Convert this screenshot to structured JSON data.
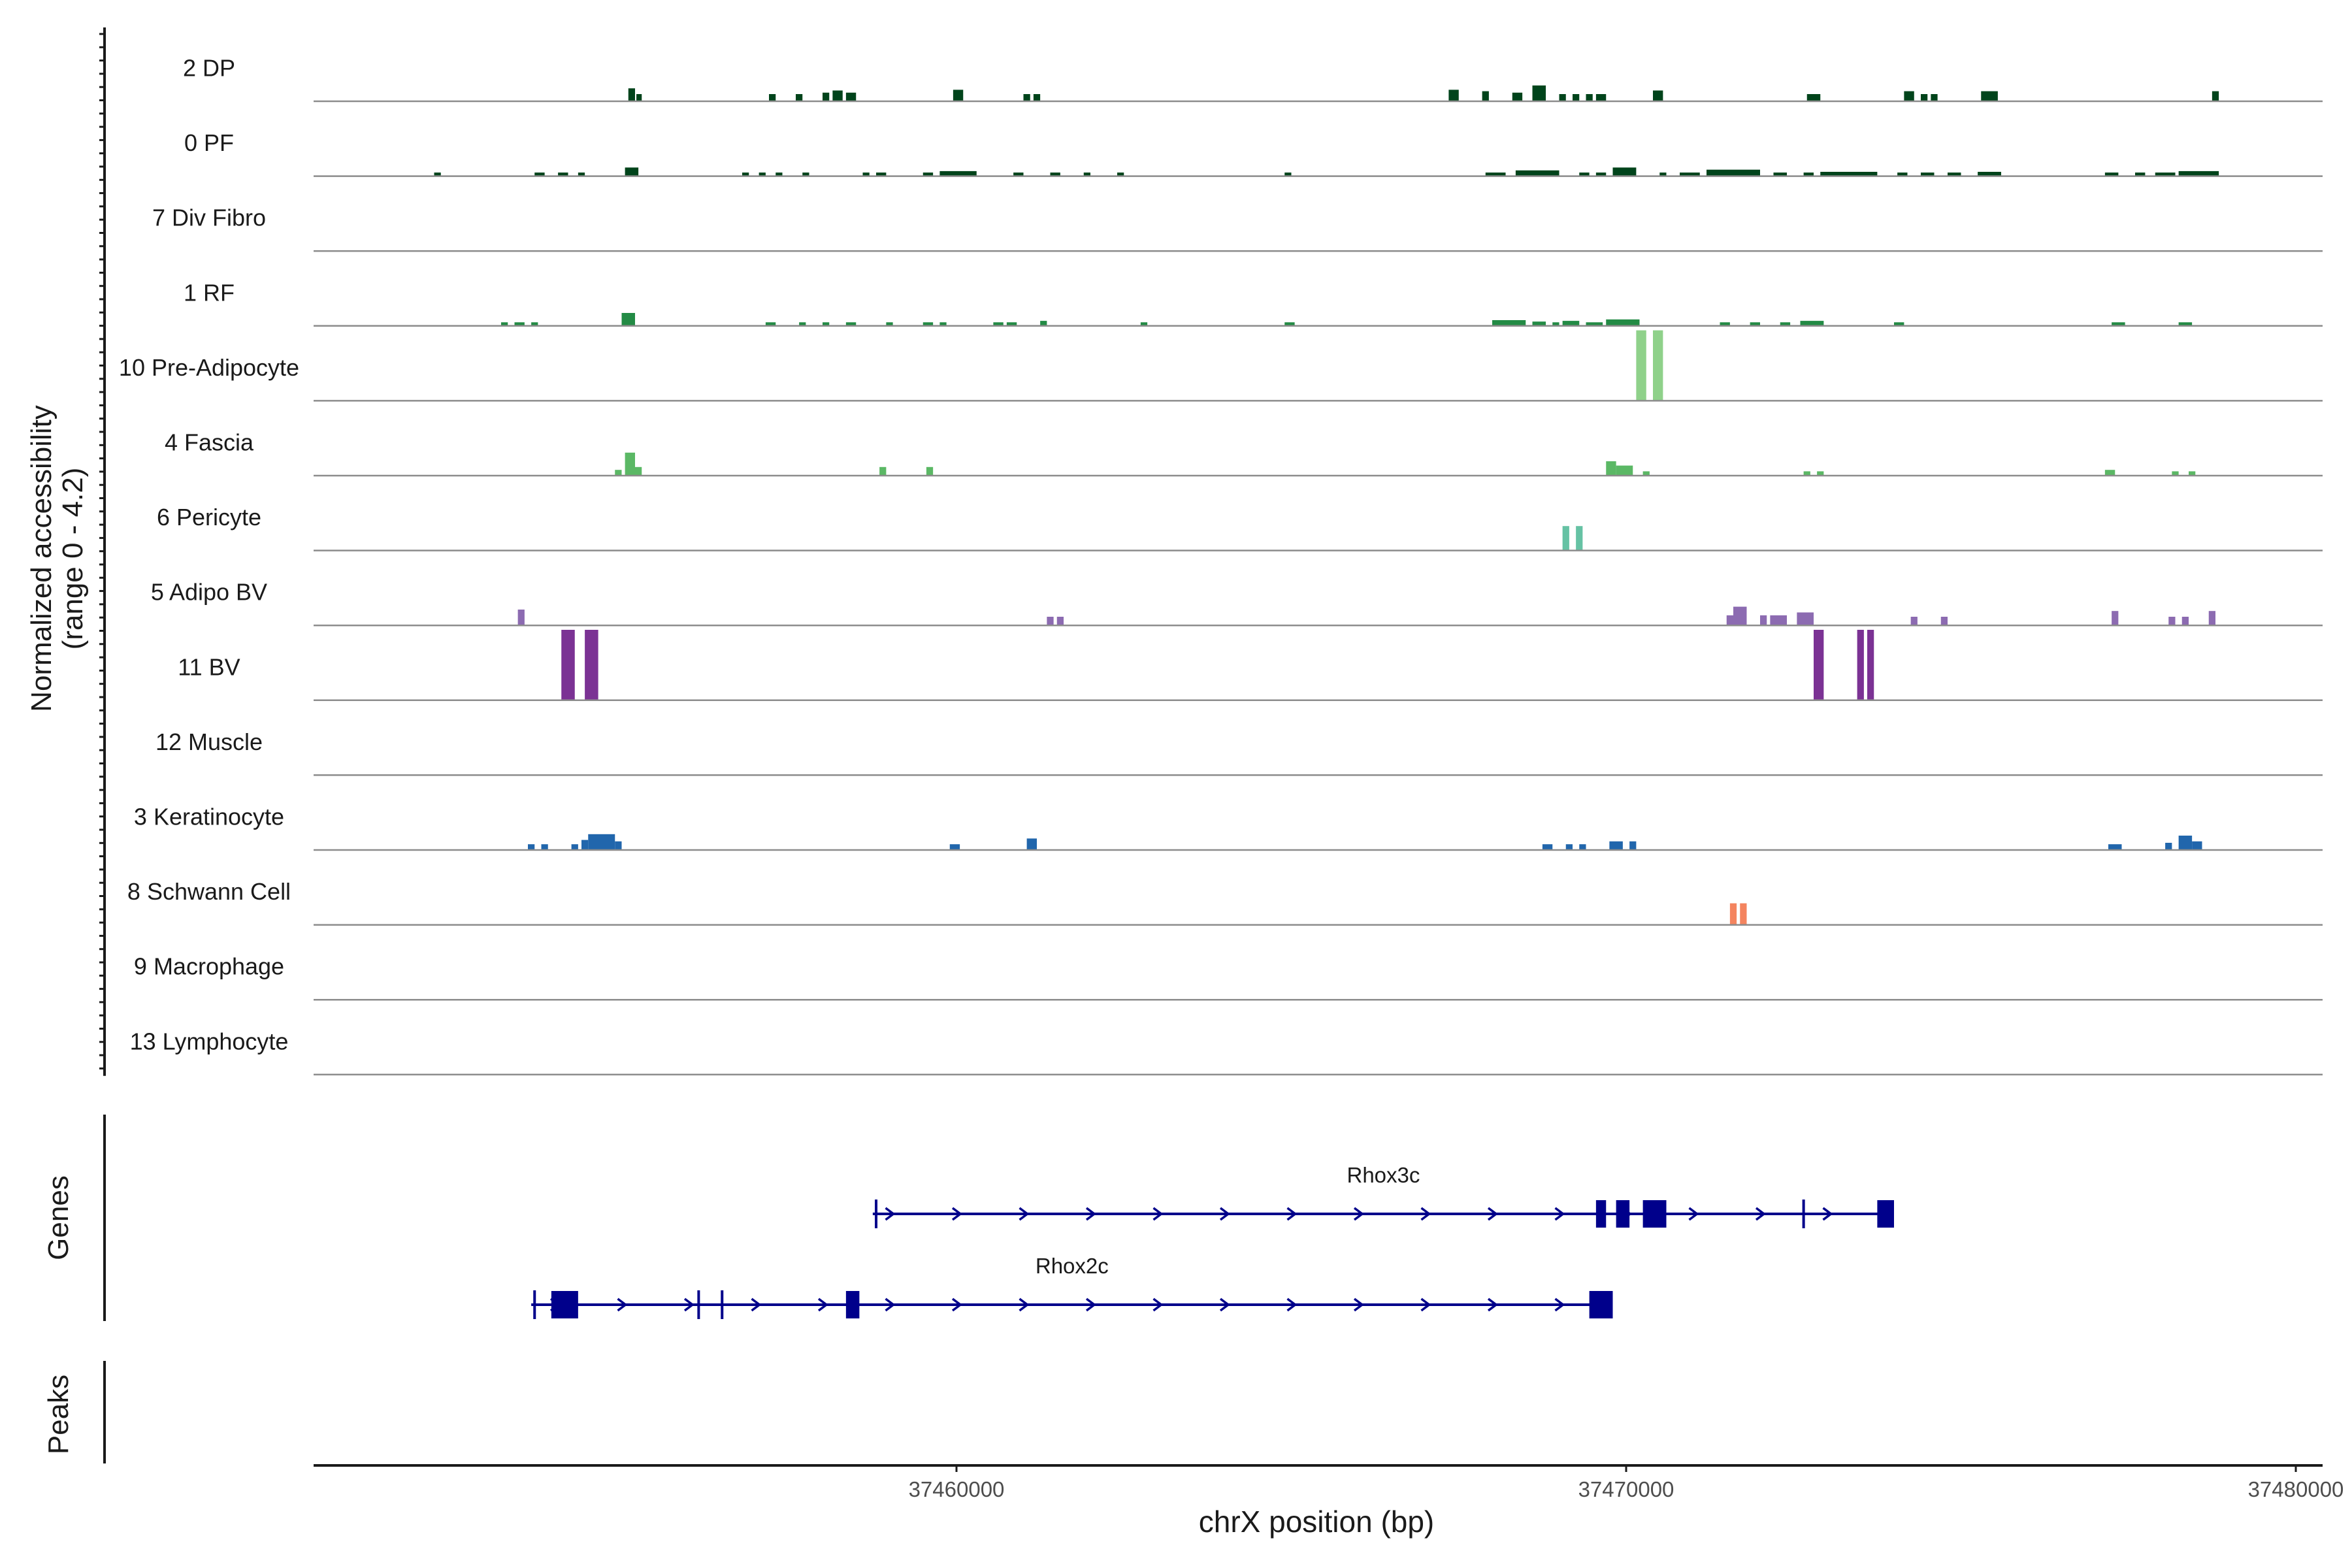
{
  "chart_data": {
    "type": "coverage",
    "title": "",
    "ylabel": "Normalized accessibility",
    "ylabel_range": "(range 0 - 4.2)",
    "y_range": [
      0,
      4.2
    ],
    "xlabel": "chrX position (bp)",
    "xlim": [
      37450400,
      37480400
    ],
    "x_ticks": [
      {
        "value": 37460000,
        "label": "37460000"
      },
      {
        "value": 37470000,
        "label": "37470000"
      },
      {
        "value": 37480000,
        "label": "37480000"
      }
    ],
    "tracks": [
      {
        "name": "2 DP",
        "color": "#00441b",
        "peaks": [
          [
            37455100,
            37455200,
            0.18
          ],
          [
            37455220,
            37455300,
            0.1
          ],
          [
            37457200,
            37457300,
            0.1
          ],
          [
            37457600,
            37457700,
            0.1
          ],
          [
            37458000,
            37458100,
            0.12
          ],
          [
            37458150,
            37458300,
            0.15
          ],
          [
            37458350,
            37458500,
            0.12
          ],
          [
            37459950,
            37460100,
            0.16
          ],
          [
            37461000,
            37461100,
            0.1
          ],
          [
            37461150,
            37461250,
            0.1
          ],
          [
            37467350,
            37467500,
            0.16
          ],
          [
            37467850,
            37467950,
            0.14
          ],
          [
            37468300,
            37468450,
            0.12
          ],
          [
            37468600,
            37468800,
            0.22
          ],
          [
            37469000,
            37469100,
            0.1
          ],
          [
            37469200,
            37469300,
            0.1
          ],
          [
            37469400,
            37469500,
            0.1
          ],
          [
            37469550,
            37469700,
            0.1
          ],
          [
            37470400,
            37470550,
            0.15
          ],
          [
            37472700,
            37472900,
            0.1
          ],
          [
            37474150,
            37474300,
            0.14
          ],
          [
            37474400,
            37474500,
            0.1
          ],
          [
            37474550,
            37474650,
            0.1
          ],
          [
            37475300,
            37475550,
            0.14
          ],
          [
            37478750,
            37478850,
            0.14
          ]
        ]
      },
      {
        "name": "0 PF",
        "color": "#00441b",
        "peaks": [
          [
            37452200,
            37452300,
            0.05
          ],
          [
            37453700,
            37453850,
            0.05
          ],
          [
            37454050,
            37454200,
            0.05
          ],
          [
            37454350,
            37454450,
            0.05
          ],
          [
            37455050,
            37455250,
            0.12
          ],
          [
            37456800,
            37456900,
            0.05
          ],
          [
            37457050,
            37457150,
            0.05
          ],
          [
            37457300,
            37457400,
            0.05
          ],
          [
            37457700,
            37457800,
            0.05
          ],
          [
            37458600,
            37458700,
            0.05
          ],
          [
            37458800,
            37458950,
            0.05
          ],
          [
            37459500,
            37459650,
            0.05
          ],
          [
            37459750,
            37460300,
            0.07
          ],
          [
            37460850,
            37461000,
            0.05
          ],
          [
            37461400,
            37461550,
            0.05
          ],
          [
            37461900,
            37462000,
            0.05
          ],
          [
            37462400,
            37462500,
            0.05
          ],
          [
            37464900,
            37465000,
            0.05
          ],
          [
            37467900,
            37468200,
            0.05
          ],
          [
            37468350,
            37469000,
            0.08
          ],
          [
            37469300,
            37469450,
            0.05
          ],
          [
            37469550,
            37469700,
            0.05
          ],
          [
            37469800,
            37470150,
            0.12
          ],
          [
            37470500,
            37470600,
            0.05
          ],
          [
            37470800,
            37471100,
            0.05
          ],
          [
            37471200,
            37472000,
            0.09
          ],
          [
            37472200,
            37472400,
            0.05
          ],
          [
            37472650,
            37472800,
            0.05
          ],
          [
            37472900,
            37473750,
            0.06
          ],
          [
            37474050,
            37474200,
            0.05
          ],
          [
            37474400,
            37474600,
            0.05
          ],
          [
            37474800,
            37475000,
            0.05
          ],
          [
            37475250,
            37475600,
            0.06
          ],
          [
            37477150,
            37477350,
            0.05
          ],
          [
            37477600,
            37477750,
            0.05
          ],
          [
            37477900,
            37478200,
            0.05
          ],
          [
            37478250,
            37478850,
            0.07
          ]
        ]
      },
      {
        "name": "7 Div Fibro",
        "color": "#006d2c",
        "peaks": []
      },
      {
        "name": "1 RF",
        "color": "#238b45",
        "peaks": [
          [
            37453200,
            37453300,
            0.05
          ],
          [
            37453400,
            37453550,
            0.05
          ],
          [
            37453650,
            37453750,
            0.05
          ],
          [
            37455000,
            37455200,
            0.18
          ],
          [
            37457150,
            37457300,
            0.05
          ],
          [
            37457650,
            37457750,
            0.05
          ],
          [
            37458000,
            37458100,
            0.05
          ],
          [
            37458350,
            37458500,
            0.05
          ],
          [
            37458950,
            37459050,
            0.05
          ],
          [
            37459500,
            37459650,
            0.05
          ],
          [
            37459750,
            37459850,
            0.05
          ],
          [
            37460550,
            37460700,
            0.05
          ],
          [
            37460750,
            37460900,
            0.05
          ],
          [
            37461250,
            37461350,
            0.07
          ],
          [
            37462750,
            37462850,
            0.05
          ],
          [
            37464900,
            37465050,
            0.05
          ],
          [
            37468000,
            37468500,
            0.08
          ],
          [
            37468600,
            37468800,
            0.06
          ],
          [
            37468900,
            37469000,
            0.05
          ],
          [
            37469050,
            37469300,
            0.07
          ],
          [
            37469400,
            37469650,
            0.05
          ],
          [
            37469700,
            37470200,
            0.09
          ],
          [
            37471400,
            37471550,
            0.05
          ],
          [
            37471850,
            37472000,
            0.05
          ],
          [
            37472300,
            37472450,
            0.05
          ],
          [
            37472600,
            37472950,
            0.07
          ],
          [
            37474000,
            37474150,
            0.05
          ],
          [
            37477250,
            37477450,
            0.05
          ],
          [
            37478250,
            37478450,
            0.05
          ]
        ]
      },
      {
        "name": "10 Pre-Adipocyte",
        "color": "#8fd18a",
        "peaks": [
          [
            37470150,
            37470300,
            0.98
          ],
          [
            37470400,
            37470550,
            0.98
          ]
        ]
      },
      {
        "name": "4 Fascia",
        "color": "#5bb865",
        "peaks": [
          [
            37454900,
            37455000,
            0.08
          ],
          [
            37455050,
            37455200,
            0.32
          ],
          [
            37455200,
            37455300,
            0.12
          ],
          [
            37458850,
            37458950,
            0.12
          ],
          [
            37459550,
            37459650,
            0.12
          ],
          [
            37469700,
            37469850,
            0.2
          ],
          [
            37469850,
            37470100,
            0.14
          ],
          [
            37470250,
            37470350,
            0.06
          ],
          [
            37472650,
            37472750,
            0.06
          ],
          [
            37472850,
            37472950,
            0.06
          ],
          [
            37477150,
            37477300,
            0.08
          ],
          [
            37478150,
            37478250,
            0.06
          ],
          [
            37478400,
            37478500,
            0.06
          ]
        ]
      },
      {
        "name": "6 Pericyte",
        "color": "#66c2a4",
        "peaks": [
          [
            37469050,
            37469150,
            0.34
          ],
          [
            37469250,
            37469350,
            0.34
          ]
        ]
      },
      {
        "name": "5 Adipo BV",
        "color": "#8c6bb1",
        "peaks": [
          [
            37453450,
            37453550,
            0.22
          ],
          [
            37461350,
            37461450,
            0.12
          ],
          [
            37461500,
            37461600,
            0.12
          ],
          [
            37471500,
            37471600,
            0.14
          ],
          [
            37471600,
            37471800,
            0.26
          ],
          [
            37472000,
            37472100,
            0.14
          ],
          [
            37472150,
            37472400,
            0.14
          ],
          [
            37472550,
            37472800,
            0.18
          ],
          [
            37474250,
            37474350,
            0.12
          ],
          [
            37474700,
            37474800,
            0.12
          ],
          [
            37477250,
            37477350,
            0.2
          ],
          [
            37478100,
            37478200,
            0.12
          ],
          [
            37478300,
            37478400,
            0.12
          ],
          [
            37478700,
            37478800,
            0.2
          ]
        ]
      },
      {
        "name": "11 BV",
        "color": "#7b3294",
        "peaks": [
          [
            37454100,
            37454300,
            0.98
          ],
          [
            37454450,
            37454650,
            0.98
          ],
          [
            37472800,
            37472950,
            0.98
          ],
          [
            37473450,
            37473550,
            0.98
          ],
          [
            37473600,
            37473700,
            0.98
          ]
        ]
      },
      {
        "name": "12 Muscle",
        "color": "#41b6c4",
        "peaks": []
      },
      {
        "name": "3 Keratinocyte",
        "color": "#2166ac",
        "peaks": [
          [
            37453600,
            37453700,
            0.08
          ],
          [
            37453800,
            37453900,
            0.08
          ],
          [
            37454250,
            37454350,
            0.08
          ],
          [
            37454400,
            37454500,
            0.14
          ],
          [
            37454500,
            37454900,
            0.22
          ],
          [
            37454900,
            37455000,
            0.12
          ],
          [
            37459900,
            37460050,
            0.08
          ],
          [
            37461050,
            37461200,
            0.16
          ],
          [
            37468750,
            37468900,
            0.08
          ],
          [
            37469100,
            37469200,
            0.08
          ],
          [
            37469300,
            37469400,
            0.08
          ],
          [
            37469750,
            37469950,
            0.12
          ],
          [
            37470050,
            37470150,
            0.12
          ],
          [
            37477200,
            37477400,
            0.08
          ],
          [
            37478050,
            37478150,
            0.1
          ],
          [
            37478250,
            37478450,
            0.2
          ],
          [
            37478450,
            37478600,
            0.12
          ]
        ]
      },
      {
        "name": "8 Schwann Cell",
        "color": "#f4845f",
        "peaks": [
          [
            37471550,
            37471650,
            0.3
          ],
          [
            37471700,
            37471800,
            0.3
          ]
        ]
      },
      {
        "name": "9 Macrophage",
        "color": "#e34a33",
        "peaks": []
      },
      {
        "name": "13 Lymphocyte",
        "color": "#b30000",
        "peaks": []
      }
    ],
    "genes_label": "Genes",
    "peaks_label": "Peaks",
    "genes": [
      {
        "name": "Rhox3c",
        "start": 37458750,
        "end": 37474000,
        "strand": "+",
        "color": "#00008b",
        "exons": [
          [
            37469550,
            37469700
          ],
          [
            37469850,
            37470050
          ],
          [
            37470250,
            37470600
          ],
          [
            37473750,
            37474000
          ]
        ],
        "boundaries": [
          37458800,
          37472650
        ]
      },
      {
        "name": "Rhox2c",
        "start": 37453650,
        "end": 37469800,
        "strand": "+",
        "color": "#00008b",
        "exons": [
          [
            37453950,
            37454350
          ],
          [
            37458350,
            37458550
          ],
          [
            37469450,
            37469800
          ]
        ],
        "boundaries": [
          37453700,
          37456150,
          37456500
        ]
      }
    ]
  }
}
